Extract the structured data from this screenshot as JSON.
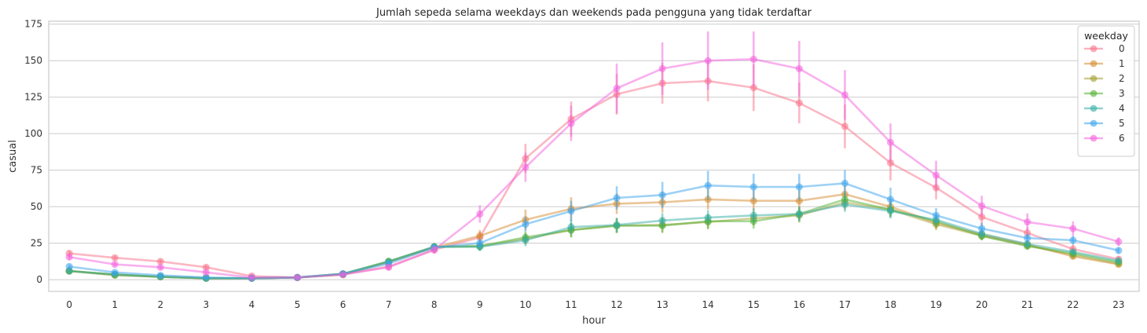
{
  "chart_data": {
    "type": "line",
    "title": "Jumlah sepeda selama weekdays dan weekends pada pengguna yang tidak terdaftar",
    "xlabel": "hour",
    "ylabel": "casual",
    "x": [
      0,
      1,
      2,
      3,
      4,
      5,
      6,
      7,
      8,
      9,
      10,
      11,
      12,
      13,
      14,
      15,
      16,
      17,
      18,
      19,
      20,
      21,
      22,
      23
    ],
    "xlim": [
      -0.45,
      23.45
    ],
    "ylim": [
      -8,
      177
    ],
    "yticks": [
      0,
      25,
      50,
      75,
      100,
      125,
      150,
      175
    ],
    "grid": true,
    "legend": {
      "title": "weekday",
      "position": "top-right"
    },
    "series": [
      {
        "name": "0",
        "color": "#f77189",
        "values": [
          18,
          15,
          12.5,
          8.5,
          2.5,
          1.5,
          3.5,
          9,
          20.5,
          29,
          83,
          110,
          127,
          134.5,
          136,
          131.5,
          121,
          105,
          80,
          63,
          43,
          32,
          21,
          14
        ],
        "ci": [
          2,
          1.5,
          1.5,
          1.5,
          0.6,
          0.5,
          0.8,
          2,
          2.5,
          4,
          10,
          12,
          14,
          14,
          14,
          16,
          14,
          15,
          12,
          8,
          6,
          4,
          3,
          2
        ]
      },
      {
        "name": "1",
        "color": "#d58c32",
        "values": [
          6,
          3.5,
          2,
          1,
          1,
          1.5,
          3.5,
          12,
          22,
          30,
          41,
          48.5,
          52,
          53,
          55,
          54,
          54,
          58.5,
          50,
          39,
          31,
          24,
          16,
          10.5
        ],
        "ci": [
          1.5,
          1,
          0.8,
          0.5,
          0.4,
          0.5,
          0.8,
          1.5,
          2.5,
          4,
          7,
          8,
          7,
          7,
          7,
          7,
          7,
          6,
          5,
          4,
          3,
          2.5,
          2,
          1.5
        ]
      },
      {
        "name": "2",
        "color": "#a4a031",
        "values": [
          6,
          3,
          2,
          1,
          1,
          1.5,
          4,
          12.5,
          22.5,
          23,
          28,
          34,
          37,
          37.5,
          39.5,
          42,
          44,
          53,
          48,
          38,
          30,
          23.5,
          17,
          11
        ],
        "ci": [
          1.5,
          1,
          0.8,
          0.5,
          0.4,
          0.5,
          0.8,
          1.5,
          2.5,
          3,
          4,
          5,
          5,
          5,
          5,
          5,
          5,
          5,
          5,
          4,
          3,
          2.5,
          2,
          1.5
        ]
      },
      {
        "name": "3",
        "color": "#50b131",
        "values": [
          6,
          3.5,
          2,
          1,
          1,
          1.5,
          4,
          12.5,
          22.5,
          23,
          29,
          34,
          37,
          37,
          40,
          40,
          45,
          55,
          48,
          40,
          30,
          23,
          18,
          12
        ],
        "ci": [
          1.5,
          1,
          0.8,
          0.5,
          0.4,
          0.5,
          0.8,
          1.5,
          2.5,
          3,
          4,
          5,
          5,
          5,
          5,
          5,
          5,
          5,
          5,
          4,
          3,
          2.5,
          2,
          1.5
        ]
      },
      {
        "name": "4",
        "color": "#36ada4",
        "values": [
          6,
          3.5,
          2,
          1,
          1,
          1.5,
          4,
          12.5,
          22.5,
          22.5,
          27,
          36,
          37.5,
          40.5,
          42.5,
          44,
          45,
          51.5,
          47,
          41,
          31.5,
          24.5,
          19,
          13
        ],
        "ci": [
          1.5,
          1,
          0.8,
          0.5,
          0.4,
          0.5,
          0.8,
          1.5,
          2.5,
          3,
          4,
          5,
          5,
          5,
          5,
          5,
          5,
          5,
          5,
          4,
          3,
          2.5,
          2,
          1.5
        ]
      },
      {
        "name": "5",
        "color": "#3ba3ec",
        "values": [
          9,
          5,
          3,
          1.5,
          1,
          1.5,
          4,
          11,
          22,
          25,
          38,
          47,
          56,
          58,
          64.5,
          63.5,
          63.5,
          66,
          55,
          44,
          35,
          28.5,
          27,
          20
        ],
        "ci": [
          1.5,
          1,
          0.8,
          0.5,
          0.4,
          0.5,
          0.8,
          1.5,
          2.5,
          3,
          5,
          7,
          8,
          9,
          10,
          9,
          9,
          9,
          8,
          5,
          4,
          3,
          3,
          2
        ]
      },
      {
        "name": "6",
        "color": "#f461dd",
        "values": [
          15.5,
          10.5,
          8.5,
          5,
          1.5,
          1.5,
          3.5,
          8.5,
          20.5,
          45,
          77,
          107,
          131,
          144.5,
          150,
          151,
          144.5,
          126.5,
          94,
          71.5,
          50.5,
          39.5,
          35,
          26
        ],
        "ci": [
          2,
          1.5,
          1.5,
          1,
          0.5,
          0.5,
          0.8,
          2,
          2.5,
          6,
          10,
          12,
          17,
          18,
          20,
          19,
          19,
          17,
          13,
          10,
          7,
          6,
          5,
          3
        ]
      }
    ]
  }
}
